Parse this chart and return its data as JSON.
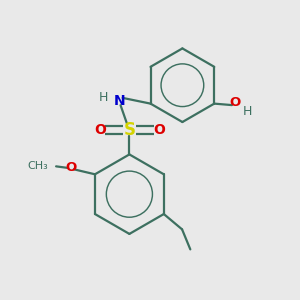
{
  "background_color": "#e9e9e9",
  "bond_color": "#3d7060",
  "S_color": "#d4d400",
  "N_color": "#0000cc",
  "O_color": "#dd0000",
  "H_color": "#3d7060",
  "line_width": 1.6,
  "figsize": [
    3.0,
    3.0
  ],
  "dpi": 100,
  "xlim": [
    0,
    10
  ],
  "ylim": [
    0,
    10
  ]
}
